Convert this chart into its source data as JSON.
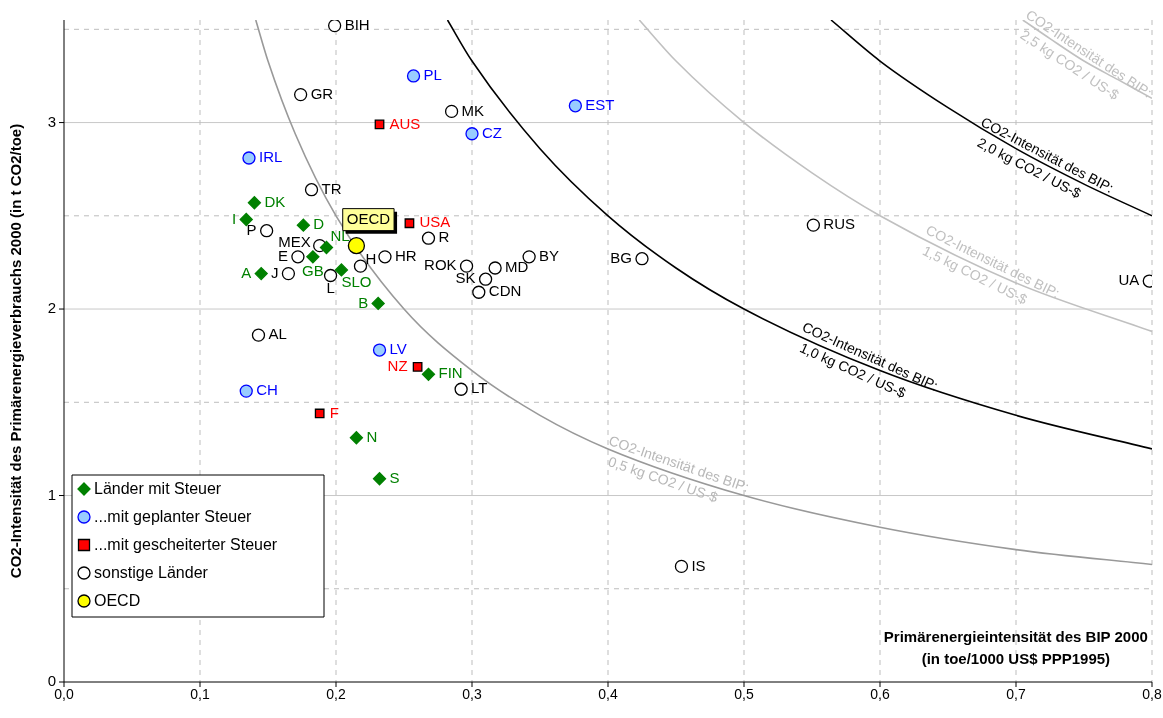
{
  "chart_data": {
    "type": "scatter",
    "ylabel": "CO2-Intensität des Primärenergieverbrauchs 2000 (in t CO2/toe)",
    "xlabel": "Primärenergieintensität des BIP 2000\n(in toe/1000 US$ PPP1995)",
    "xlim": [
      0,
      0.8
    ],
    "ylim": [
      0,
      3.55
    ],
    "xticks": [
      {
        "value": 0,
        "label": "0,0"
      },
      {
        "value": 0.1,
        "label": "0,1"
      },
      {
        "value": 0.2,
        "label": "0,2"
      },
      {
        "value": 0.3,
        "label": "0,3"
      },
      {
        "value": 0.4,
        "label": "0,4"
      },
      {
        "value": 0.5,
        "label": "0,5"
      },
      {
        "value": 0.6,
        "label": "0,6"
      },
      {
        "value": 0.7,
        "label": "0,7"
      },
      {
        "value": 0.8,
        "label": "0,8"
      }
    ],
    "yticks": [
      0,
      {
        "value": 0.5,
        "label": null
      },
      1,
      {
        "value": 1.5,
        "label": null
      },
      2,
      {
        "value": 2.5,
        "label": null
      },
      3,
      {
        "value": 3.5,
        "label": null
      }
    ],
    "grid": true,
    "legend": "bottom left",
    "series": [
      {
        "name": "Länder mit Steuer",
        "color": "#008000",
        "marker": "diamond",
        "x": [
          0.14,
          0.134,
          0.176,
          0.193,
          0.183,
          0.145,
          0.204,
          0.231,
          0.268,
          0.215,
          0.232
        ],
        "values": [
          2.57,
          2.48,
          2.45,
          2.33,
          2.28,
          2.19,
          2.21,
          2.03,
          1.65,
          1.31,
          1.09
        ],
        "value_labels": [
          "DK",
          "I",
          "D",
          "NL",
          "GB",
          "A",
          "SLO",
          "B",
          "FIN",
          "N",
          "S"
        ]
      },
      {
        "name": "...mit geplanter Steuer",
        "color": "#99ccff",
        "marker": "circle",
        "x": [
          0.257,
          0.136,
          0.3,
          0.376,
          0.232,
          0.134
        ],
        "values": [
          3.25,
          2.81,
          2.94,
          3.09,
          1.78,
          1.56
        ],
        "value_labels": [
          "PL",
          "IRL",
          "CZ",
          "EST",
          "LV",
          "CH"
        ]
      },
      {
        "name": "...mit gescheiterter Steuer",
        "color": "#ff0000",
        "marker": "square",
        "x": [
          0.232,
          0.254,
          0.26,
          0.188
        ],
        "values": [
          2.99,
          2.46,
          1.69,
          1.44
        ],
        "value_labels": [
          "AUS",
          "USA",
          "NZ",
          "F"
        ]
      },
      {
        "name": "sonstige Länder",
        "color": "#000000",
        "marker": "circle",
        "x": [
          0.199,
          0.174,
          0.285,
          0.182,
          0.149,
          0.188,
          0.172,
          0.165,
          0.196,
          0.218,
          0.236,
          0.268,
          0.296,
          0.31,
          0.317,
          0.305,
          0.342,
          0.425,
          0.551,
          0.798,
          0.143,
          0.292,
          0.454
        ],
        "values": [
          3.52,
          3.15,
          3.06,
          2.64,
          2.42,
          2.34,
          2.28,
          2.19,
          2.18,
          2.23,
          2.28,
          2.38,
          2.23,
          2.16,
          2.22,
          2.09,
          2.28,
          2.27,
          2.45,
          2.15,
          1.86,
          1.57,
          0.62
        ],
        "value_labels": [
          "BIH",
          "GR",
          "MK",
          "TR",
          "P",
          "MEX",
          "E",
          "J",
          "L",
          "H",
          "HR",
          "R",
          "ROK",
          "SK",
          "MD",
          "CDN",
          "BY",
          "BG",
          "RUS",
          "UA",
          "AL",
          "LT",
          "IS"
        ]
      },
      {
        "name": "OECD",
        "color": "#ffff00",
        "marker": "circle",
        "x": [
          0.215
        ],
        "values": [
          2.34
        ],
        "value_labels": [
          "OECD"
        ]
      },
      {
        "name": "CO2-Intensität des BIP:\n0,5 kg CO2 / US-$",
        "type": "line",
        "color": "#999999",
        "x": [
          0.141,
          0.15,
          0.17,
          0.2,
          0.25,
          0.3,
          0.35,
          0.4,
          0.5,
          0.6,
          0.7,
          0.8
        ],
        "values": [
          3.55,
          3.33,
          2.94,
          2.5,
          2.0,
          1.67,
          1.43,
          1.25,
          1.0,
          0.83,
          0.71,
          0.63
        ]
      },
      {
        "name": "CO2-Intensität des BIP:\n1,0 kg CO2 / US-$",
        "type": "line",
        "color": "#000000",
        "x": [
          0.282,
          0.3,
          0.35,
          0.4,
          0.45,
          0.5,
          0.6,
          0.7,
          0.8
        ],
        "values": [
          3.55,
          3.33,
          2.86,
          2.5,
          2.22,
          2.0,
          1.67,
          1.43,
          1.25
        ]
      },
      {
        "name": "CO2-Intensität des BIP:\n1,5 kg CO2 / US-$",
        "type": "line",
        "color": "#c0c0c0",
        "x": [
          0.423,
          0.45,
          0.5,
          0.55,
          0.6,
          0.7,
          0.8
        ],
        "values": [
          3.55,
          3.33,
          3.0,
          2.73,
          2.5,
          2.14,
          1.88
        ]
      },
      {
        "name": "CO2-Intensität des BIP:\n2,0 kg CO2 / US-$",
        "type": "line",
        "color": "#000000",
        "x": [
          0.564,
          0.6,
          0.65,
          0.7,
          0.75,
          0.8
        ],
        "values": [
          3.55,
          3.33,
          3.08,
          2.86,
          2.67,
          2.5
        ]
      },
      {
        "name": "CO2-Intensität des BIP:\n2,5 kg CO2 / US-$",
        "type": "line",
        "color": "#c0c0c0",
        "x": [
          0.705,
          0.725,
          0.75,
          0.775,
          0.8
        ],
        "values": [
          3.55,
          3.45,
          3.33,
          3.23,
          3.13
        ]
      }
    ]
  }
}
